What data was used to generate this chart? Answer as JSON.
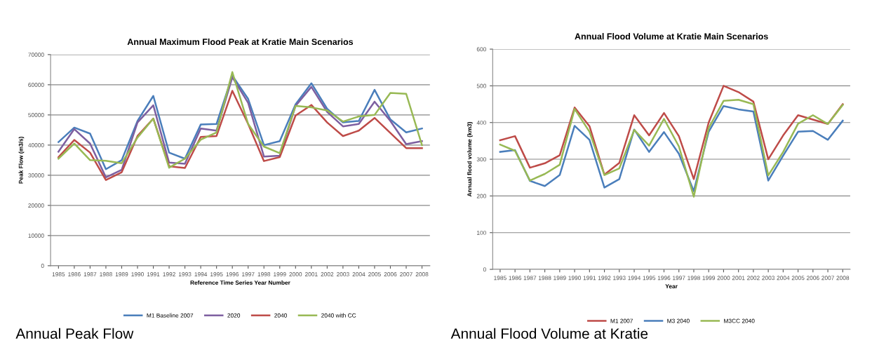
{
  "chart_data": [
    {
      "type": "line",
      "title": "Annual Maximum Flood Peak at Kratie Main Scenarios",
      "xlabel": "Reference Time Series Year Number",
      "ylabel": "Peak Flow (m3/s)",
      "categories": [
        "1985",
        "1986",
        "1987",
        "1988",
        "1989",
        "1990",
        "1991",
        "1992",
        "1993",
        "1994",
        "1995",
        "1996",
        "1997",
        "1998",
        "1999",
        "2000",
        "2001",
        "2002",
        "2003",
        "2004",
        "2005",
        "2006",
        "2007",
        "2008"
      ],
      "series": [
        {
          "name": "M1 Baseline 2007",
          "color": "#4a7ebb",
          "values": [
            41000,
            45800,
            43800,
            32000,
            35000,
            48000,
            56300,
            37500,
            35500,
            46800,
            47000,
            63000,
            55300,
            40000,
            41300,
            53500,
            60500,
            52000,
            47500,
            48000,
            58300,
            48500,
            44200,
            45500
          ]
        },
        {
          "name": "2020",
          "color": "#7d5fa0",
          "values": [
            37800,
            45300,
            40500,
            29300,
            31800,
            47500,
            53200,
            34200,
            33800,
            45500,
            44800,
            62500,
            54000,
            36200,
            36500,
            53000,
            59300,
            51000,
            46200,
            47000,
            54400,
            48000,
            40300,
            41300
          ]
        },
        {
          "name": "2040",
          "color": "#be4b48",
          "values": [
            36000,
            41700,
            37500,
            28400,
            31000,
            43000,
            48800,
            33000,
            32400,
            42700,
            43000,
            58000,
            47000,
            34700,
            36000,
            49800,
            53300,
            47500,
            43000,
            44800,
            49000,
            44000,
            39000,
            39000
          ]
        },
        {
          "name": "2040 with CC",
          "color": "#98b954",
          "values": [
            35500,
            40500,
            35000,
            34800,
            34000,
            42500,
            48800,
            32500,
            35500,
            41800,
            44200,
            64200,
            47000,
            39500,
            37300,
            53000,
            52500,
            51500,
            47800,
            49500,
            50000,
            57300,
            57000,
            40000
          ]
        }
      ],
      "ylim": [
        0,
        70000
      ],
      "yticks": [
        0,
        10000,
        20000,
        30000,
        40000,
        50000,
        60000,
        70000
      ],
      "grid": "y",
      "legend": "bottom",
      "marker": "none",
      "annotations": [
        "Annual Peak Flow"
      ]
    },
    {
      "type": "line",
      "title": "Annual Flood Volume at Kratie Main Scenarios",
      "xlabel": "Year",
      "ylabel": "Annual flood volume (km3)",
      "categories": [
        "1985",
        "1986",
        "1987",
        "1988",
        "1989",
        "1990",
        "1991",
        "1992",
        "1993",
        "1994",
        "1995",
        "1996",
        "1997",
        "1998",
        "1999",
        "2000",
        "2001",
        "2002",
        "2003",
        "2004",
        "2005",
        "2006",
        "2007",
        "2008"
      ],
      "series": [
        {
          "name": "M1 2007",
          "color": "#be4b48",
          "values": [
            352,
            363,
            277,
            289,
            311,
            441,
            390,
            258,
            290,
            420,
            365,
            426,
            363,
            246,
            400,
            500,
            483,
            457,
            300,
            365,
            420,
            408,
            396,
            450
          ]
        },
        {
          "name": "M3 2040",
          "color": "#4a7ebb",
          "values": [
            320,
            325,
            241,
            227,
            257,
            391,
            353,
            223,
            246,
            381,
            320,
            374,
            315,
            213,
            375,
            445,
            436,
            430,
            242,
            310,
            375,
            377,
            353,
            405
          ]
        },
        {
          "name": "M3CC 2040",
          "color": "#98b954",
          "values": [
            340,
            323,
            242,
            260,
            285,
            437,
            375,
            257,
            275,
            380,
            337,
            410,
            335,
            198,
            385,
            459,
            462,
            450,
            256,
            320,
            397,
            420,
            396,
            448
          ]
        }
      ],
      "ylim": [
        0,
        600
      ],
      "yticks": [
        0,
        100,
        200,
        300,
        400,
        500,
        600
      ],
      "grid": "y",
      "legend": "bottom",
      "marker": "none",
      "annotations": [
        "Annual Flood Volume at Kratie"
      ]
    }
  ]
}
